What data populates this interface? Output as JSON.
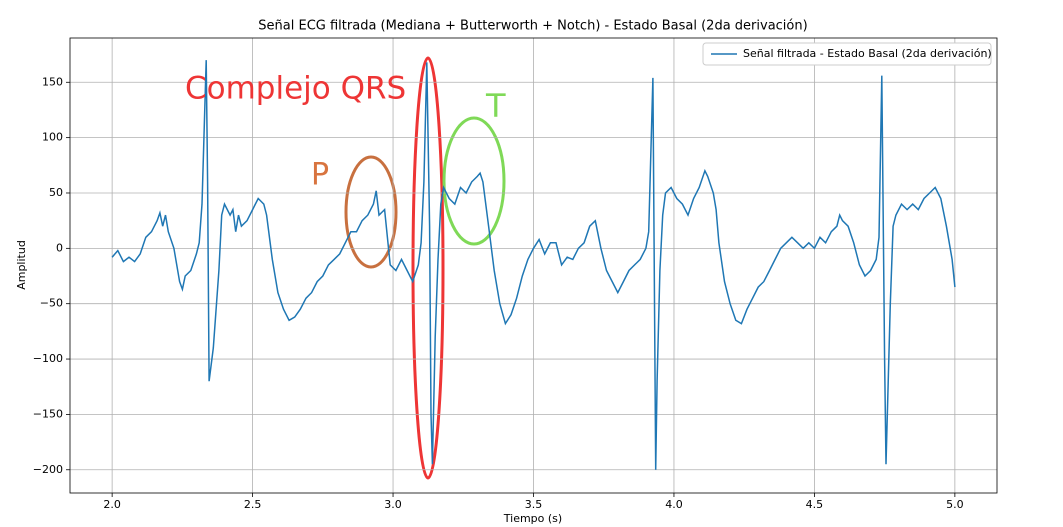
{
  "chart_data": {
    "type": "line",
    "title": "Señal ECG filtrada (Mediana + Butterworth + Notch) - Estado Basal (2da derivación)",
    "x_label": "Tiempo (s)",
    "y_label": "Amplitud",
    "x": [
      2.0,
      2.02,
      2.04,
      2.06,
      2.08,
      2.1,
      2.12,
      2.14,
      2.16,
      2.17,
      2.18,
      2.19,
      2.2,
      2.22,
      2.24,
      2.25,
      2.26,
      2.28,
      2.3,
      2.31,
      2.32,
      2.335,
      2.34,
      2.345,
      2.36,
      2.38,
      2.39,
      2.4,
      2.42,
      2.43,
      2.44,
      2.45,
      2.46,
      2.48,
      2.5,
      2.52,
      2.54,
      2.55,
      2.57,
      2.59,
      2.61,
      2.63,
      2.65,
      2.67,
      2.69,
      2.71,
      2.73,
      2.75,
      2.77,
      2.79,
      2.81,
      2.83,
      2.85,
      2.87,
      2.89,
      2.91,
      2.93,
      2.94,
      2.95,
      2.97,
      2.98,
      2.99,
      3.01,
      3.03,
      3.05,
      3.07,
      3.09,
      3.1,
      3.11,
      3.12,
      3.13,
      3.135,
      3.14,
      3.15,
      3.16,
      3.17,
      3.18,
      3.2,
      3.22,
      3.24,
      3.26,
      3.28,
      3.3,
      3.31,
      3.32,
      3.34,
      3.36,
      3.38,
      3.4,
      3.42,
      3.44,
      3.46,
      3.48,
      3.5,
      3.52,
      3.54,
      3.56,
      3.58,
      3.6,
      3.62,
      3.64,
      3.66,
      3.68,
      3.7,
      3.72,
      3.74,
      3.76,
      3.78,
      3.8,
      3.82,
      3.84,
      3.86,
      3.88,
      3.9,
      3.91,
      3.925,
      3.935,
      3.94,
      3.95,
      3.96,
      3.97,
      3.99,
      4.01,
      4.03,
      4.05,
      4.07,
      4.09,
      4.11,
      4.12,
      4.14,
      4.15,
      4.16,
      4.18,
      4.2,
      4.22,
      4.24,
      4.26,
      4.28,
      4.3,
      4.32,
      4.34,
      4.36,
      4.38,
      4.4,
      4.42,
      4.44,
      4.46,
      4.48,
      4.5,
      4.52,
      4.54,
      4.56,
      4.58,
      4.59,
      4.6,
      4.62,
      4.64,
      4.66,
      4.68,
      4.7,
      4.72,
      4.73,
      4.74,
      4.75,
      4.755,
      4.77,
      4.78,
      4.79,
      4.81,
      4.83,
      4.85,
      4.87,
      4.89,
      4.91,
      4.93,
      4.95,
      4.97,
      4.99,
      5.0
    ],
    "series": [
      {
        "name": "Señal filtrada - Estado Basal (2da derivación)",
        "color": "#1f77b4",
        "values": [
          -8,
          -2,
          -12,
          -8,
          -12,
          -5,
          10,
          15,
          25,
          32,
          20,
          30,
          15,
          0,
          -30,
          -37,
          -25,
          -20,
          -5,
          5,
          40,
          170,
          60,
          -120,
          -90,
          -20,
          30,
          40,
          30,
          35,
          15,
          30,
          20,
          25,
          35,
          45,
          40,
          30,
          -10,
          -40,
          -55,
          -65,
          -62,
          -55,
          -45,
          -40,
          -30,
          -25,
          -15,
          -10,
          -5,
          5,
          15,
          15,
          25,
          30,
          40,
          52,
          30,
          35,
          10,
          -15,
          -20,
          -10,
          -20,
          -30,
          -15,
          5,
          60,
          168,
          20,
          -150,
          -195,
          -80,
          -10,
          40,
          55,
          45,
          40,
          55,
          50,
          60,
          65,
          68,
          60,
          20,
          -20,
          -50,
          -68,
          -60,
          -45,
          -25,
          -10,
          0,
          8,
          -5,
          5,
          5,
          -15,
          -8,
          -10,
          0,
          5,
          20,
          25,
          0,
          -20,
          -30,
          -40,
          -30,
          -20,
          -15,
          -10,
          0,
          15,
          154,
          -200,
          -120,
          -20,
          30,
          50,
          55,
          45,
          40,
          30,
          45,
          55,
          70,
          65,
          50,
          35,
          5,
          -30,
          -50,
          -65,
          -68,
          -55,
          -45,
          -35,
          -30,
          -20,
          -10,
          0,
          5,
          10,
          5,
          0,
          5,
          0,
          10,
          5,
          15,
          20,
          30,
          25,
          20,
          5,
          -15,
          -25,
          -20,
          -10,
          10,
          156,
          -100,
          -195,
          -50,
          20,
          30,
          40,
          35,
          40,
          35,
          45,
          50,
          55,
          45,
          20,
          -10,
          -35
        ]
      }
    ],
    "xlim": [
      1.85,
      5.15
    ],
    "ylim": [
      -221,
      190
    ],
    "xticks": [
      {
        "value": 2,
        "label": "2.0"
      },
      {
        "value": 2.5,
        "label": "2.5"
      },
      {
        "value": 3,
        "label": "3.0"
      },
      {
        "value": 3.5,
        "label": "3.5"
      },
      {
        "value": 4,
        "label": "4.0"
      },
      {
        "value": 4.5,
        "label": "4.5"
      },
      {
        "value": 5,
        "label": "5.0"
      }
    ],
    "yticks": [
      {
        "value": -200,
        "label": "−200"
      },
      {
        "value": -150,
        "label": "−150"
      },
      {
        "value": -100,
        "label": "−100"
      },
      {
        "value": -50,
        "label": "−50"
      },
      0,
      50,
      100,
      150
    ],
    "grid": true,
    "legend": "upper right",
    "annotations": [
      {
        "text": "Complejo QRS",
        "color": "#ee3535"
      },
      {
        "text": "P",
        "color": "#d8743f"
      },
      {
        "text": "T",
        "color": "#7fd957"
      }
    ]
  }
}
